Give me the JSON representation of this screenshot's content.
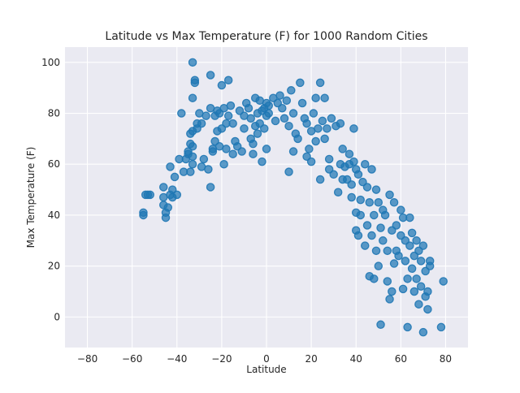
{
  "chart_data": {
    "type": "scatter",
    "title": "Latitude vs Max Temperature (F) for 1000 Random Cities",
    "xlabel": "Latitude",
    "ylabel": "Max Temperature (F)",
    "xlim": [
      -90,
      90
    ],
    "ylim": [
      -12,
      106
    ],
    "xticks": [
      -80,
      -60,
      -40,
      -20,
      0,
      20,
      40,
      60,
      80
    ],
    "yticks": [
      0,
      20,
      40,
      60,
      80,
      100
    ],
    "grid": true,
    "colors": {
      "point": "#1f77b4",
      "panel": "#eaeaf2",
      "grid": "#ffffff"
    },
    "series": [
      {
        "points": [
          [
            -55,
            40
          ],
          [
            -55,
            41
          ],
          [
            -54,
            48
          ],
          [
            -53,
            48
          ],
          [
            -52,
            48
          ],
          [
            -46,
            51
          ],
          [
            -46,
            47
          ],
          [
            -46,
            44
          ],
          [
            -45,
            39
          ],
          [
            -45,
            41
          ],
          [
            -44,
            43
          ],
          [
            -43,
            59
          ],
          [
            -43,
            48
          ],
          [
            -42,
            50
          ],
          [
            -42,
            47
          ],
          [
            -41,
            55
          ],
          [
            -40,
            48
          ],
          [
            -39,
            62
          ],
          [
            -38,
            80
          ],
          [
            -37,
            57
          ],
          [
            -36,
            62
          ],
          [
            -35,
            64
          ],
          [
            -35,
            65
          ],
          [
            -34,
            72
          ],
          [
            -34,
            68
          ],
          [
            -34,
            57
          ],
          [
            -33,
            73
          ],
          [
            -33,
            63
          ],
          [
            -33,
            60
          ],
          [
            -33,
            67
          ],
          [
            -33,
            86
          ],
          [
            -33,
            100
          ],
          [
            -32,
            93
          ],
          [
            -32,
            92
          ],
          [
            -31,
            74
          ],
          [
            -31,
            76
          ],
          [
            -30,
            80
          ],
          [
            -29,
            59
          ],
          [
            -29,
            76
          ],
          [
            -28,
            62
          ],
          [
            -27,
            79
          ],
          [
            -26,
            58
          ],
          [
            -25,
            95
          ],
          [
            -25,
            51
          ],
          [
            -25,
            82
          ],
          [
            -24,
            66
          ],
          [
            -24,
            65
          ],
          [
            -23,
            69
          ],
          [
            -23,
            79
          ],
          [
            -22,
            73
          ],
          [
            -22,
            81
          ],
          [
            -21,
            67
          ],
          [
            -21,
            80
          ],
          [
            -20,
            74
          ],
          [
            -20,
            91
          ],
          [
            -19,
            82
          ],
          [
            -19,
            60
          ],
          [
            -18,
            66
          ],
          [
            -18,
            76
          ],
          [
            -17,
            93
          ],
          [
            -17,
            79
          ],
          [
            -16,
            83
          ],
          [
            -15,
            76
          ],
          [
            -15,
            64
          ],
          [
            -14,
            69
          ],
          [
            -13,
            67
          ],
          [
            -12,
            81
          ],
          [
            -11,
            65
          ],
          [
            -10,
            79
          ],
          [
            -10,
            74
          ],
          [
            -9,
            84
          ],
          [
            -8,
            82
          ],
          [
            -7,
            78
          ],
          [
            -7,
            70
          ],
          [
            -6,
            68
          ],
          [
            -6,
            64
          ],
          [
            -5,
            86
          ],
          [
            -5,
            75
          ],
          [
            -4,
            80
          ],
          [
            -4,
            72
          ],
          [
            -3,
            85
          ],
          [
            -3,
            76
          ],
          [
            -2,
            81
          ],
          [
            -2,
            61
          ],
          [
            -1,
            82
          ],
          [
            -1,
            74
          ],
          [
            0,
            84
          ],
          [
            0,
            79
          ],
          [
            0,
            66
          ],
          [
            1,
            83
          ],
          [
            1,
            80
          ],
          [
            3,
            86
          ],
          [
            4,
            77
          ],
          [
            5,
            84
          ],
          [
            6,
            87
          ],
          [
            7,
            82
          ],
          [
            8,
            78
          ],
          [
            9,
            85
          ],
          [
            10,
            57
          ],
          [
            10,
            75
          ],
          [
            11,
            89
          ],
          [
            12,
            80
          ],
          [
            12,
            65
          ],
          [
            13,
            72
          ],
          [
            14,
            70
          ],
          [
            15,
            92
          ],
          [
            16,
            84
          ],
          [
            17,
            78
          ],
          [
            18,
            63
          ],
          [
            18,
            76
          ],
          [
            19,
            66
          ],
          [
            20,
            61
          ],
          [
            20,
            73
          ],
          [
            21,
            80
          ],
          [
            22,
            69
          ],
          [
            22,
            86
          ],
          [
            23,
            74
          ],
          [
            24,
            92
          ],
          [
            24,
            54
          ],
          [
            25,
            77
          ],
          [
            26,
            86
          ],
          [
            26,
            70
          ],
          [
            27,
            74
          ],
          [
            28,
            62
          ],
          [
            28,
            58
          ],
          [
            29,
            78
          ],
          [
            30,
            56
          ],
          [
            31,
            75
          ],
          [
            32,
            49
          ],
          [
            33,
            76
          ],
          [
            33,
            60
          ],
          [
            34,
            66
          ],
          [
            34,
            54
          ],
          [
            35,
            59
          ],
          [
            36,
            54
          ],
          [
            37,
            64
          ],
          [
            37,
            60
          ],
          [
            38,
            52
          ],
          [
            38,
            47
          ],
          [
            39,
            74
          ],
          [
            39,
            61
          ],
          [
            40,
            41
          ],
          [
            40,
            34
          ],
          [
            40,
            58
          ],
          [
            41,
            32
          ],
          [
            41,
            56
          ],
          [
            42,
            46
          ],
          [
            42,
            40
          ],
          [
            43,
            53
          ],
          [
            44,
            60
          ],
          [
            44,
            28
          ],
          [
            45,
            51
          ],
          [
            45,
            36
          ],
          [
            46,
            45
          ],
          [
            46,
            16
          ],
          [
            47,
            58
          ],
          [
            47,
            32
          ],
          [
            48,
            40
          ],
          [
            48,
            15
          ],
          [
            49,
            50
          ],
          [
            49,
            26
          ],
          [
            50,
            45
          ],
          [
            50,
            20
          ],
          [
            51,
            35
          ],
          [
            51,
            -3
          ],
          [
            52,
            42
          ],
          [
            52,
            30
          ],
          [
            53,
            40
          ],
          [
            54,
            14
          ],
          [
            54,
            26
          ],
          [
            55,
            48
          ],
          [
            55,
            7
          ],
          [
            56,
            34
          ],
          [
            56,
            10
          ],
          [
            57,
            45
          ],
          [
            57,
            21
          ],
          [
            58,
            36
          ],
          [
            58,
            26
          ],
          [
            59,
            24
          ],
          [
            60,
            42
          ],
          [
            60,
            32
          ],
          [
            61,
            39
          ],
          [
            61,
            11
          ],
          [
            62,
            30
          ],
          [
            62,
            22
          ],
          [
            63,
            15
          ],
          [
            63,
            -4
          ],
          [
            64,
            39
          ],
          [
            64,
            28
          ],
          [
            65,
            33
          ],
          [
            65,
            19
          ],
          [
            66,
            24
          ],
          [
            66,
            10
          ],
          [
            67,
            30
          ],
          [
            67,
            15
          ],
          [
            68,
            26
          ],
          [
            68,
            5
          ],
          [
            69,
            22
          ],
          [
            69,
            12
          ],
          [
            70,
            28
          ],
          [
            70,
            -6
          ],
          [
            71,
            18
          ],
          [
            71,
            8
          ],
          [
            72,
            10
          ],
          [
            72,
            3
          ],
          [
            73,
            22
          ],
          [
            73,
            20
          ],
          [
            78,
            -4
          ],
          [
            79,
            14
          ]
        ]
      }
    ]
  }
}
